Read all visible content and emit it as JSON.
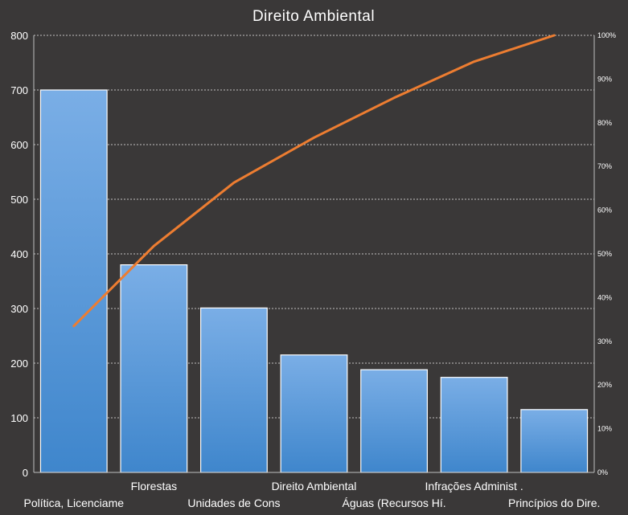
{
  "chart_data": {
    "type": "bar",
    "title": "Direito Ambiental",
    "categories": [
      "Política, Licenciame",
      "Florestas",
      "Unidades de Cons",
      "Direito Ambiental",
      "Águas (Recursos Hí.",
      "Infrações Administ .",
      "Princípios do Dire."
    ],
    "series": [
      {
        "type": "bar",
        "values": [
          700,
          380,
          301,
          215,
          188,
          174,
          115
        ]
      },
      {
        "type": "line",
        "axis": "secondary",
        "values": [
          0.335,
          0.518,
          0.663,
          0.766,
          0.857,
          0.94,
          1.0
        ]
      }
    ],
    "ylim": [
      0,
      800
    ],
    "yticks": [
      "0",
      "100",
      "200",
      "300",
      "400",
      "500",
      "600",
      "700",
      "800"
    ],
    "y2lim": [
      0,
      1
    ],
    "y2ticks": [
      "0%",
      "10%",
      "20%",
      "30%",
      "40%",
      "50%",
      "60%",
      "70%",
      "80%",
      "90%",
      "100%"
    ],
    "grid": true,
    "colors": {
      "background": "#3a3838",
      "bar_top": "#7aaee6",
      "bar_bottom": "#3f86cc",
      "line": "#ed7d31",
      "text": "#ffffff"
    }
  }
}
